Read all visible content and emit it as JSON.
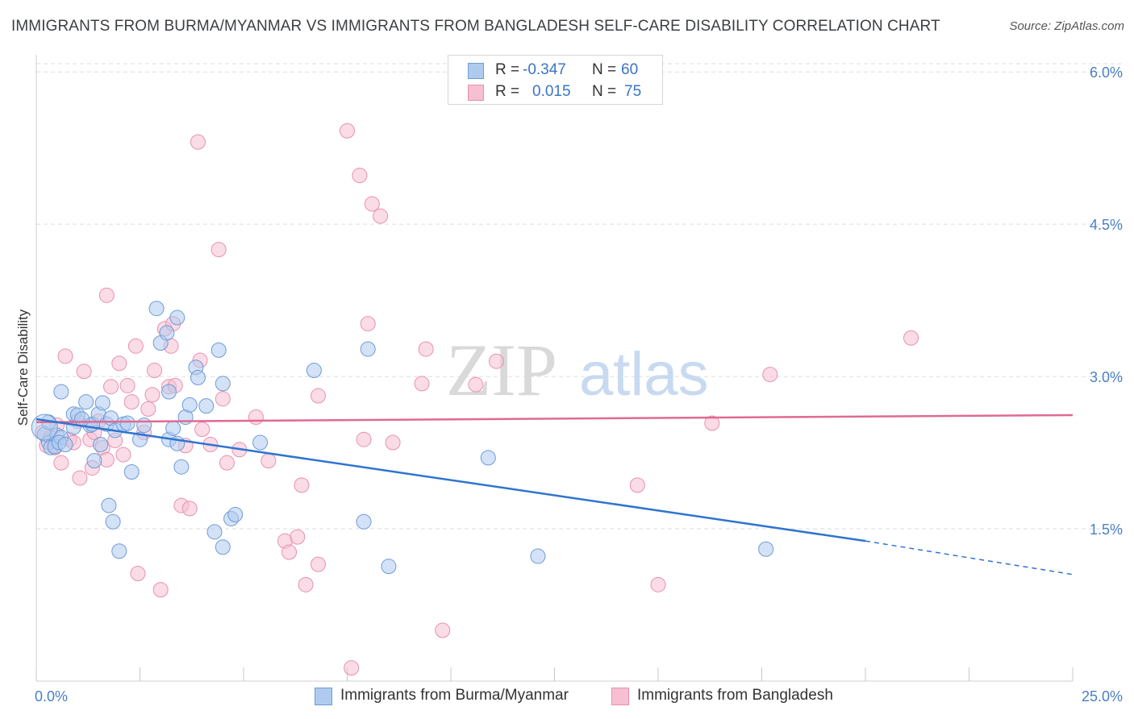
{
  "header": {
    "title": "IMMIGRANTS FROM BURMA/MYANMAR VS IMMIGRANTS FROM BANGLADESH SELF-CARE DISABILITY CORRELATION CHART",
    "source": "Source: ZipAtlas.com"
  },
  "watermark": {
    "zip": "ZIP",
    "atlas": "atlas"
  },
  "legend": {
    "rows": [
      {
        "r_label": "R =",
        "r_value": "-0.347",
        "n_label": "N =",
        "n_value": "60"
      },
      {
        "r_label": "R =",
        "r_value": "0.015",
        "n_label": "N =",
        "n_value": "75"
      }
    ]
  },
  "bottom_legend": {
    "series1": "Immigrants from Burma/Myanmar",
    "series2": "Immigrants from Bangladesh"
  },
  "colors": {
    "blue_fill": "#aecbef",
    "blue_stroke": "#6e9bd8",
    "blue_line": "#2f74d0",
    "pink_fill": "#f6bfd2",
    "pink_stroke": "#e890b0",
    "pink_line": "#e06a93",
    "axis_text": "#4a7fc6",
    "grid": "#dedede"
  },
  "chart_data": {
    "type": "scatter",
    "title": "IMMIGRANTS FROM BURMA/MYANMAR VS IMMIGRANTS FROM BANGLADESH SELF-CARE DISABILITY CORRELATION CHART",
    "xlabel": "",
    "ylabel": "Self-Care Disability",
    "xlim": [
      0,
      25
    ],
    "ylim": [
      0,
      6.2
    ],
    "x_tick_labels": [
      "0.0%",
      "25.0%"
    ],
    "y_ticks": [
      1.5,
      3.0,
      4.5,
      6.0
    ],
    "y_tick_labels": [
      "1.5%",
      "3.0%",
      "4.5%",
      "6.0%"
    ],
    "grid": true,
    "legend_position": "top-center",
    "series": [
      {
        "name": "Immigrants from Burma/Myanmar",
        "r": -0.347,
        "n": 60,
        "trend": {
          "x_start": 0,
          "y_start": 2.58,
          "x_solid_end": 20,
          "y_solid_end": 1.38,
          "x_end": 25,
          "y_end": 1.05
        },
        "points": [
          [
            0.2,
            2.43
          ],
          [
            0.3,
            2.35
          ],
          [
            0.35,
            2.3
          ],
          [
            0.5,
            2.42
          ],
          [
            0.45,
            2.31
          ],
          [
            0.6,
            2.4
          ],
          [
            0.55,
            2.35
          ],
          [
            0.6,
            2.85
          ],
          [
            0.7,
            2.33
          ],
          [
            0.9,
            2.5
          ],
          [
            0.9,
            2.63
          ],
          [
            1.0,
            2.62
          ],
          [
            1.2,
            2.75
          ],
          [
            1.3,
            2.52
          ],
          [
            1.35,
            2.53
          ],
          [
            1.4,
            2.17
          ],
          [
            1.55,
            2.33
          ],
          [
            1.5,
            2.63
          ],
          [
            1.6,
            2.74
          ],
          [
            1.7,
            2.53
          ],
          [
            1.75,
            1.73
          ],
          [
            1.8,
            2.59
          ],
          [
            1.9,
            2.47
          ],
          [
            1.85,
            1.57
          ],
          [
            2.1,
            2.53
          ],
          [
            2.0,
            1.28
          ],
          [
            2.2,
            2.54
          ],
          [
            2.3,
            2.06
          ],
          [
            2.5,
            2.38
          ],
          [
            2.6,
            2.52
          ],
          [
            2.9,
            3.67
          ],
          [
            3.0,
            3.33
          ],
          [
            3.2,
            2.85
          ],
          [
            3.15,
            3.43
          ],
          [
            3.2,
            2.38
          ],
          [
            3.3,
            2.49
          ],
          [
            3.4,
            3.58
          ],
          [
            3.5,
            2.11
          ],
          [
            3.4,
            2.34
          ],
          [
            3.6,
            2.6
          ],
          [
            3.7,
            2.72
          ],
          [
            3.85,
            3.09
          ],
          [
            3.9,
            2.99
          ],
          [
            4.1,
            2.71
          ],
          [
            4.3,
            1.47
          ],
          [
            4.4,
            3.26
          ],
          [
            4.5,
            2.93
          ],
          [
            4.5,
            1.32
          ],
          [
            4.7,
            1.6
          ],
          [
            4.8,
            1.64
          ],
          [
            5.4,
            2.35
          ],
          [
            6.7,
            3.06
          ],
          [
            7.9,
            1.57
          ],
          [
            8.0,
            3.27
          ],
          [
            8.5,
            1.13
          ],
          [
            10.9,
            2.2
          ],
          [
            12.1,
            1.23
          ],
          [
            17.6,
            1.3
          ],
          [
            0.3,
            2.55
          ],
          [
            1.1,
            2.58
          ]
        ]
      },
      {
        "name": "Immigrants from Bangladesh",
        "r": 0.015,
        "n": 75,
        "trend": {
          "x_start": 0,
          "y_start": 2.55,
          "x_end": 25,
          "y_end": 2.62
        },
        "points": [
          [
            0.15,
            2.45
          ],
          [
            0.25,
            2.32
          ],
          [
            0.35,
            2.4
          ],
          [
            0.45,
            2.3
          ],
          [
            0.6,
            2.15
          ],
          [
            0.7,
            3.2
          ],
          [
            0.8,
            2.38
          ],
          [
            1.0,
            2.56
          ],
          [
            1.05,
            2.0
          ],
          [
            1.15,
            3.05
          ],
          [
            1.3,
            2.38
          ],
          [
            1.35,
            2.1
          ],
          [
            1.4,
            2.45
          ],
          [
            1.5,
            2.56
          ],
          [
            1.6,
            2.3
          ],
          [
            1.7,
            2.18
          ],
          [
            1.7,
            3.8
          ],
          [
            1.8,
            2.9
          ],
          [
            1.9,
            2.37
          ],
          [
            2.0,
            3.13
          ],
          [
            2.1,
            2.23
          ],
          [
            2.2,
            2.91
          ],
          [
            2.3,
            2.75
          ],
          [
            2.4,
            3.3
          ],
          [
            2.45,
            1.06
          ],
          [
            2.6,
            2.45
          ],
          [
            2.7,
            2.68
          ],
          [
            2.8,
            2.82
          ],
          [
            2.85,
            3.06
          ],
          [
            3.0,
            0.9
          ],
          [
            3.1,
            3.47
          ],
          [
            3.2,
            2.9
          ],
          [
            3.25,
            3.3
          ],
          [
            3.3,
            3.52
          ],
          [
            3.35,
            2.91
          ],
          [
            3.5,
            1.73
          ],
          [
            3.6,
            2.32
          ],
          [
            3.7,
            1.7
          ],
          [
            3.9,
            5.31
          ],
          [
            3.95,
            3.16
          ],
          [
            4.0,
            2.48
          ],
          [
            4.2,
            2.33
          ],
          [
            4.4,
            4.25
          ],
          [
            4.5,
            2.78
          ],
          [
            4.6,
            2.15
          ],
          [
            4.9,
            2.28
          ],
          [
            5.3,
            2.6
          ],
          [
            5.6,
            2.17
          ],
          [
            6.0,
            1.38
          ],
          [
            6.1,
            1.27
          ],
          [
            6.3,
            1.42
          ],
          [
            6.4,
            1.93
          ],
          [
            6.5,
            0.95
          ],
          [
            6.8,
            1.15
          ],
          [
            6.8,
            2.81
          ],
          [
            7.5,
            5.42
          ],
          [
            7.6,
            0.13
          ],
          [
            7.8,
            4.98
          ],
          [
            7.9,
            2.38
          ],
          [
            8.0,
            3.52
          ],
          [
            8.1,
            4.7
          ],
          [
            8.3,
            4.58
          ],
          [
            8.6,
            2.35
          ],
          [
            9.3,
            2.93
          ],
          [
            9.4,
            3.27
          ],
          [
            10.6,
            2.92
          ],
          [
            11.1,
            3.15
          ],
          [
            14.5,
            1.93
          ],
          [
            15.0,
            0.95
          ],
          [
            16.3,
            2.54
          ],
          [
            17.7,
            3.02
          ],
          [
            21.1,
            3.38
          ],
          [
            0.5,
            2.52
          ],
          [
            0.9,
            2.35
          ],
          [
            9.8,
            0.5
          ]
        ]
      }
    ]
  }
}
